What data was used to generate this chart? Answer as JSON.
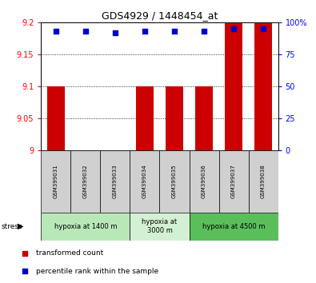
{
  "title": "GDS4929 / 1448454_at",
  "samples": [
    "GSM399031",
    "GSM399032",
    "GSM399033",
    "GSM399034",
    "GSM399035",
    "GSM399036",
    "GSM399037",
    "GSM399038"
  ],
  "red_values": [
    9.1,
    9.0,
    9.0,
    9.1,
    9.1,
    9.1,
    9.2,
    9.2
  ],
  "blue_values": [
    93,
    93,
    92,
    93,
    93,
    93,
    95,
    95
  ],
  "ylim_left": [
    9.0,
    9.2
  ],
  "ylim_right": [
    0,
    100
  ],
  "yticks_left": [
    9.0,
    9.05,
    9.1,
    9.15,
    9.2
  ],
  "yticks_right": [
    0,
    25,
    50,
    75,
    100
  ],
  "ytick_labels_left": [
    "9",
    "9.05",
    "9.1",
    "9.15",
    "9.2"
  ],
  "ytick_labels_right": [
    "0",
    "25",
    "50",
    "75",
    "100%"
  ],
  "groups": [
    {
      "label": "hypoxia at 1400 m",
      "start": 0,
      "end": 3,
      "color": "#b8e8b8"
    },
    {
      "label": "hypoxia at\n3000 m",
      "start": 3,
      "end": 5,
      "color": "#d4f0d4"
    },
    {
      "label": "hypoxia at 4500 m",
      "start": 5,
      "end": 8,
      "color": "#5abf5a"
    }
  ],
  "bar_color": "#cc0000",
  "dot_color": "#0000cc",
  "bar_width": 0.6,
  "dot_size": 22,
  "legend_items": [
    {
      "color": "#cc0000",
      "label": "transformed count"
    },
    {
      "color": "#0000cc",
      "label": "percentile rank within the sample"
    }
  ],
  "stress_label": "stress",
  "background_color": "#ffffff",
  "grid_color": "#000000",
  "sample_box_color": "#d0d0d0"
}
